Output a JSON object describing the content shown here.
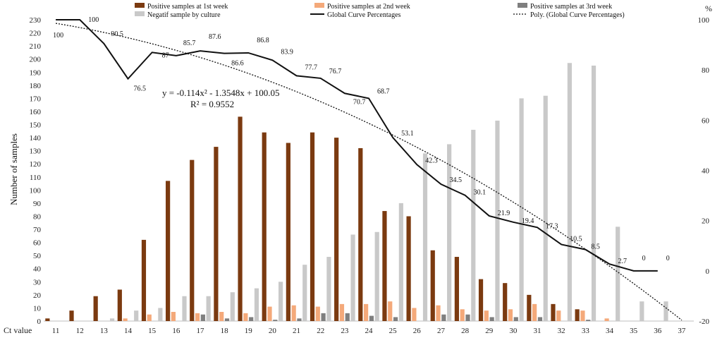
{
  "chart_data": {
    "type": "bar",
    "xlabel": "Ct value",
    "ylabel": "Number of samples",
    "y2label": "%",
    "ylim": [
      0,
      230
    ],
    "y2lim": [
      -20,
      100
    ],
    "yticks": [
      0,
      10,
      20,
      30,
      40,
      50,
      60,
      70,
      80,
      90,
      100,
      110,
      120,
      130,
      140,
      150,
      160,
      170,
      180,
      190,
      200,
      210,
      220,
      230
    ],
    "y2ticks": [
      -20,
      0,
      20,
      40,
      60,
      80,
      100
    ],
    "categories": [
      "11",
      "12",
      "13",
      "14",
      "15",
      "16",
      "17",
      "18",
      "19",
      "20",
      "21",
      "22",
      "23",
      "24",
      "25",
      "26",
      "27",
      "28",
      "29",
      "30",
      "31",
      "32",
      "33",
      "34",
      "35",
      "36",
      "37"
    ],
    "grid": false,
    "legend_position": "top",
    "series": [
      {
        "name": "Positive samples at 1st week",
        "type": "bar",
        "color": "#7b3a10",
        "values": [
          2,
          8,
          19,
          24,
          62,
          107,
          123,
          133,
          156,
          144,
          136,
          144,
          140,
          132,
          84,
          80,
          54,
          49,
          32,
          29,
          20,
          13,
          9,
          0,
          0,
          0,
          0
        ]
      },
      {
        "name": "Positive samples at 2nd week",
        "type": "bar",
        "color": "#f4a97a",
        "values": [
          0,
          0,
          0,
          2,
          5,
          7,
          6,
          7,
          6,
          11,
          12,
          11,
          13,
          13,
          15,
          10,
          12,
          9,
          8,
          9,
          13,
          8,
          8,
          2,
          0,
          0,
          0
        ]
      },
      {
        "name": "Positive samples at 3rd week",
        "type": "bar",
        "color": "#7f7f7f",
        "values": [
          0,
          0,
          0,
          0,
          0,
          0,
          5,
          2,
          3,
          1,
          2,
          6,
          6,
          4,
          3,
          0,
          5,
          5,
          3,
          3,
          3,
          0,
          1,
          0,
          0,
          0,
          0
        ]
      },
      {
        "name": "Negatif sample by culture",
        "type": "bar",
        "color": "#c9c9c9",
        "values": [
          0,
          0,
          2,
          8,
          10,
          19,
          19,
          22,
          25,
          30,
          43,
          49,
          66,
          68,
          90,
          128,
          135,
          146,
          153,
          170,
          172,
          197,
          195,
          72,
          15,
          15,
          0
        ]
      },
      {
        "name": "Global Curve Percentages",
        "type": "line",
        "axis": "right",
        "color": "#111111",
        "values": [
          100,
          100,
          90.5,
          76.5,
          87,
          85.7,
          87.6,
          86.6,
          86.8,
          83.9,
          77.7,
          76.7,
          70.7,
          68.7,
          53.1,
          42.3,
          34.5,
          30.1,
          21.9,
          19.4,
          17.3,
          10.5,
          8.5,
          2.7,
          0,
          0,
          null
        ],
        "labels": [
          "100",
          "100",
          "90.5",
          "76.5",
          "87",
          "85.7",
          "87.6",
          "86.6",
          "86.8",
          "83.9",
          "77.7",
          "76.7",
          "70.7",
          "68.7",
          "53.1",
          "42.3",
          "34.5",
          "30.1",
          "21.9",
          "19.4",
          "17.3",
          "10.5",
          "8.5",
          "2.7",
          "0",
          "0",
          ""
        ]
      },
      {
        "name": "Poly. (Global Curve Percentages)",
        "type": "trendline",
        "axis": "right",
        "color": "#111111",
        "dash": "dotted",
        "coefficients": [
          -0.114,
          -1.3548,
          100.05
        ]
      }
    ],
    "annotations": {
      "equation": "y = -0.114x² - 1.3548x + 100.05",
      "r_squared": "R² = 0.9552"
    }
  }
}
